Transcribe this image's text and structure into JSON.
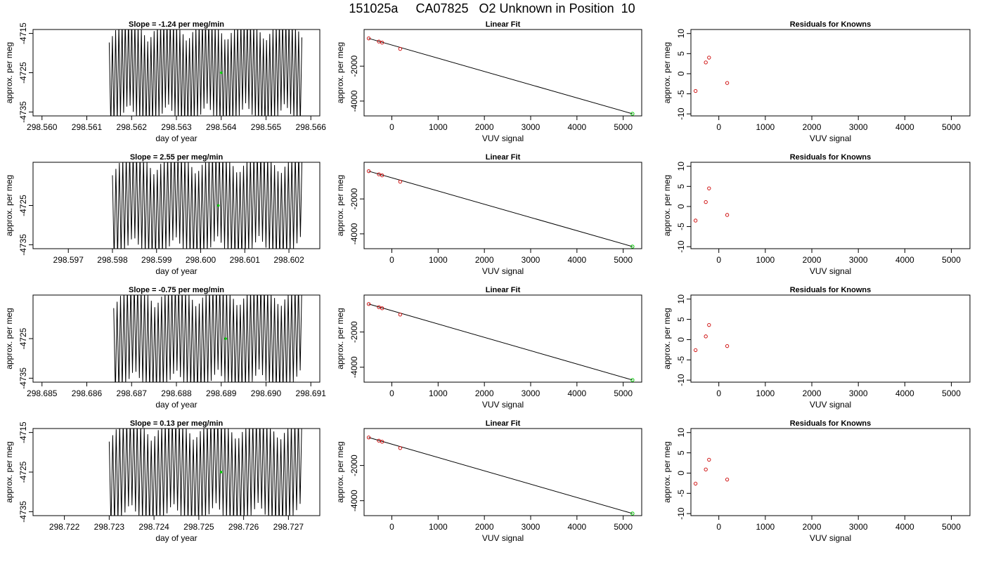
{
  "title": "151025a     CA07825   O2 Unknown in Position  10",
  "colors": {
    "trace": "#000000",
    "known_point": "#cc0000",
    "unknown_point": "#00cc00",
    "fit_line": "#000000"
  },
  "chart_data": [
    {
      "row": 1,
      "panel": "time-series",
      "type": "line",
      "title": "Slope =  -1.24  per meg/min",
      "xlabel": "day of year",
      "ylabel": "approx. per meg",
      "xlim": [
        298.5598,
        298.5662
      ],
      "ylim": [
        -4736,
        -4714
      ],
      "xticks": [
        "298.560",
        "298.561",
        "298.562",
        "298.563",
        "298.564",
        "298.565",
        "298.566"
      ],
      "yticks": [
        "-4715",
        "-4725",
        "-4735"
      ],
      "trace": {
        "x_start": 298.5615,
        "x_end": 298.5658,
        "center": -4725,
        "amplitude": 14,
        "cycles": 60
      },
      "marker": {
        "x": 298.564,
        "y": -4725
      }
    },
    {
      "row": 1,
      "panel": "linear-fit",
      "type": "scatter",
      "title": "Linear Fit",
      "xlabel": "VUV signal",
      "ylabel": "approx. per meg",
      "xlim": [
        -600,
        5400
      ],
      "ylim": [
        -4850,
        100
      ],
      "xticks": [
        "0",
        "1000",
        "2000",
        "3000",
        "4000",
        "5000"
      ],
      "yticks": [
        "-2000",
        "-4000"
      ],
      "knowns": {
        "x": [
          -500,
          -280,
          -210,
          180
        ],
        "y": [
          -410,
          -590,
          -650,
          -1010
        ]
      },
      "unknown": {
        "x": 5200,
        "y": -4728
      },
      "fit_line": {
        "x": [
          -500,
          5200
        ],
        "y": [
          -410,
          -4728
        ]
      }
    },
    {
      "row": 1,
      "panel": "residuals",
      "type": "scatter",
      "title": "Residuals for Knowns",
      "xlabel": "VUV signal",
      "ylabel": "approx. per meg",
      "xlim": [
        -600,
        5400
      ],
      "ylim": [
        -10.5,
        11
      ],
      "xticks": [
        "0",
        "1000",
        "2000",
        "3000",
        "4000",
        "5000"
      ],
      "yticks": [
        "10",
        "5",
        "0",
        "-5",
        "-10"
      ],
      "knowns": {
        "x": [
          -500,
          -280,
          -210,
          180
        ],
        "y": [
          -4.3,
          2.8,
          4.0,
          -2.3
        ]
      }
    },
    {
      "row": 2,
      "panel": "time-series",
      "type": "line",
      "title": "Slope =  2.55  per meg/min",
      "xlabel": "day of year",
      "ylabel": "approx. per meg",
      "xlim": [
        298.5962,
        298.6027
      ],
      "ylim": [
        -4736,
        -4714
      ],
      "xticks": [
        "298.597",
        "298.598",
        "298.599",
        "298.600",
        "298.601",
        "298.602"
      ],
      "yticks": [
        "-4725",
        "-4735"
      ],
      "trace": {
        "x_start": 298.598,
        "x_end": 298.6023,
        "center": -4725,
        "amplitude": 14,
        "cycles": 55
      },
      "marker": {
        "x": 298.6004,
        "y": -4725
      }
    },
    {
      "row": 2,
      "panel": "linear-fit",
      "type": "scatter",
      "title": "Linear Fit",
      "xlabel": "VUV signal",
      "ylabel": "approx. per meg",
      "xlim": [
        -600,
        5400
      ],
      "ylim": [
        -4850,
        100
      ],
      "xticks": [
        "0",
        "1000",
        "2000",
        "3000",
        "4000",
        "5000"
      ],
      "yticks": [
        "-2000",
        "-4000"
      ],
      "knowns": {
        "x": [
          -500,
          -280,
          -210,
          180
        ],
        "y": [
          -410,
          -590,
          -650,
          -1010
        ]
      },
      "unknown": {
        "x": 5200,
        "y": -4728
      },
      "fit_line": {
        "x": [
          -500,
          5200
        ],
        "y": [
          -410,
          -4728
        ]
      }
    },
    {
      "row": 2,
      "panel": "residuals",
      "type": "scatter",
      "title": "Residuals for Knowns",
      "xlabel": "VUV signal",
      "ylabel": "approx. per meg",
      "xlim": [
        -600,
        5400
      ],
      "ylim": [
        -10.5,
        11
      ],
      "xticks": [
        "0",
        "1000",
        "2000",
        "3000",
        "4000",
        "5000"
      ],
      "yticks": [
        "10",
        "5",
        "0",
        "-5",
        "-10"
      ],
      "knowns": {
        "x": [
          -500,
          -280,
          -210,
          180
        ],
        "y": [
          -3.5,
          1.1,
          4.5,
          -2.1
        ]
      }
    },
    {
      "row": 3,
      "panel": "time-series",
      "type": "line",
      "title": "Slope =  -0.75  per meg/min",
      "xlabel": "day of year",
      "ylabel": "approx. per meg",
      "xlim": [
        298.6848,
        298.6912
      ],
      "ylim": [
        -4736,
        -4714
      ],
      "xticks": [
        "298.685",
        "298.686",
        "298.687",
        "298.688",
        "298.689",
        "298.690",
        "298.691"
      ],
      "yticks": [
        "-4725",
        "-4735"
      ],
      "trace": {
        "x_start": 298.6866,
        "x_end": 298.6908,
        "center": -4725,
        "amplitude": 14,
        "cycles": 55
      },
      "marker": {
        "x": 298.6891,
        "y": -4725
      }
    },
    {
      "row": 3,
      "panel": "linear-fit",
      "type": "scatter",
      "title": "Linear Fit",
      "xlabel": "VUV signal",
      "ylabel": "approx. per meg",
      "xlim": [
        -600,
        5400
      ],
      "ylim": [
        -4850,
        100
      ],
      "xticks": [
        "0",
        "1000",
        "2000",
        "3000",
        "4000",
        "5000"
      ],
      "yticks": [
        "-2000",
        "-4000"
      ],
      "knowns": {
        "x": [
          -500,
          -280,
          -210,
          180
        ],
        "y": [
          -410,
          -590,
          -650,
          -1010
        ]
      },
      "unknown": {
        "x": 5200,
        "y": -4728
      },
      "fit_line": {
        "x": [
          -500,
          5200
        ],
        "y": [
          -410,
          -4728
        ]
      }
    },
    {
      "row": 3,
      "panel": "residuals",
      "type": "scatter",
      "title": "Residuals for Knowns",
      "xlabel": "VUV signal",
      "ylabel": "approx. per meg",
      "xlim": [
        -600,
        5400
      ],
      "ylim": [
        -10.5,
        11
      ],
      "xticks": [
        "0",
        "1000",
        "2000",
        "3000",
        "4000",
        "5000"
      ],
      "yticks": [
        "10",
        "5",
        "0",
        "-5",
        "-10"
      ],
      "knowns": {
        "x": [
          -500,
          -280,
          -210,
          180
        ],
        "y": [
          -2.6,
          0.8,
          3.6,
          -1.6
        ]
      }
    },
    {
      "row": 4,
      "panel": "time-series",
      "type": "line",
      "title": "Slope =  0.13  per meg/min",
      "xlabel": "day of year",
      "ylabel": "approx. per meg",
      "xlim": [
        298.7213,
        298.7277
      ],
      "ylim": [
        -4736,
        -4714
      ],
      "xticks": [
        "298.722",
        "298.723",
        "298.724",
        "298.725",
        "298.726",
        "298.727"
      ],
      "yticks": [
        "-4715",
        "-4725",
        "-4735"
      ],
      "trace": {
        "x_start": 298.723,
        "x_end": 298.7273,
        "center": -4725,
        "amplitude": 14,
        "cycles": 55
      },
      "marker": {
        "x": 298.7255,
        "y": -4725
      }
    },
    {
      "row": 4,
      "panel": "linear-fit",
      "type": "scatter",
      "title": "Linear Fit",
      "xlabel": "VUV signal",
      "ylabel": "approx. per meg",
      "xlim": [
        -600,
        5400
      ],
      "ylim": [
        -4850,
        100
      ],
      "xticks": [
        "0",
        "1000",
        "2000",
        "3000",
        "4000",
        "5000"
      ],
      "yticks": [
        "-2000",
        "-4000"
      ],
      "knowns": {
        "x": [
          -500,
          -280,
          -210,
          180
        ],
        "y": [
          -410,
          -590,
          -650,
          -1010
        ]
      },
      "unknown": {
        "x": 5200,
        "y": -4728
      },
      "fit_line": {
        "x": [
          -500,
          5200
        ],
        "y": [
          -410,
          -4728
        ]
      }
    },
    {
      "row": 4,
      "panel": "residuals",
      "type": "scatter",
      "title": "Residuals for Knowns",
      "xlabel": "VUV signal",
      "ylabel": "approx. per meg",
      "xlim": [
        -600,
        5400
      ],
      "ylim": [
        -10.5,
        11
      ],
      "xticks": [
        "0",
        "1000",
        "2000",
        "3000",
        "4000",
        "5000"
      ],
      "yticks": [
        "10",
        "5",
        "0",
        "-5",
        "-10"
      ],
      "knowns": {
        "x": [
          -500,
          -280,
          -210,
          180
        ],
        "y": [
          -2.6,
          0.9,
          3.3,
          -1.6
        ]
      }
    }
  ]
}
